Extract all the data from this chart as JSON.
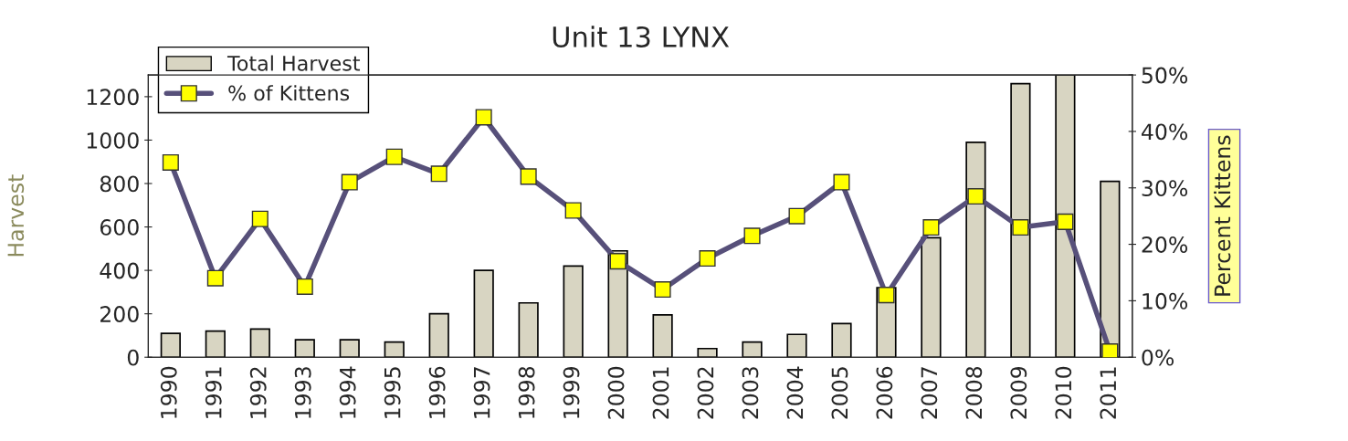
{
  "chart_data": {
    "type": "bar",
    "title": "Unit 13 LYNX",
    "ylabel": "Harvest",
    "y2label": "Percent Kittens",
    "categories": [
      "1990",
      "1991",
      "1992",
      "1993",
      "1994",
      "1995",
      "1996",
      "1997",
      "1998",
      "1999",
      "2000",
      "2001",
      "2002",
      "2003",
      "2004",
      "2005",
      "2006",
      "2007",
      "2008",
      "2009",
      "2010",
      "2011"
    ],
    "series": [
      {
        "name": "Total Harvest",
        "color": "#d8d5c2",
        "values": [
          110,
          120,
          130,
          80,
          80,
          70,
          200,
          400,
          250,
          420,
          490,
          195,
          40,
          70,
          105,
          155,
          320,
          550,
          990,
          1260,
          1300,
          810
        ]
      },
      {
        "name": "% of Kittens",
        "type": "line",
        "axis": "y2",
        "color": "#57507a",
        "marker": "square",
        "values": [
          34.5,
          14,
          24.5,
          12.5,
          31,
          35.5,
          32.5,
          42.5,
          32,
          26,
          17,
          12,
          17.5,
          21.5,
          25,
          31,
          11,
          23,
          28.5,
          23,
          24,
          1
        ]
      }
    ],
    "ylim": [
      0,
      1300
    ],
    "yticks": [
      0,
      200,
      400,
      600,
      800,
      1000,
      1200
    ],
    "y2lim": [
      0,
      50
    ],
    "y2ticks": [
      {
        "value": 0,
        "label": "0%"
      },
      {
        "value": 10,
        "label": "10%"
      },
      {
        "value": 20,
        "label": "20%"
      },
      {
        "value": 30,
        "label": "30%"
      },
      {
        "value": 40,
        "label": "40%"
      },
      {
        "value": 50,
        "label": "50%"
      }
    ],
    "grid": false,
    "legend": "top left"
  }
}
